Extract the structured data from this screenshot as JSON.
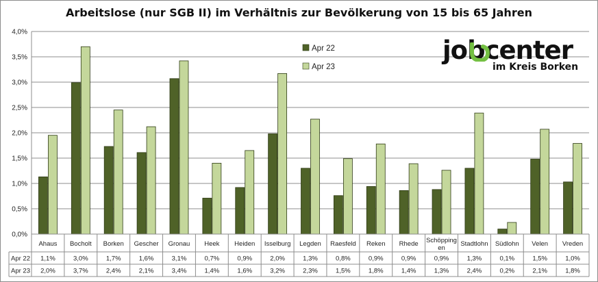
{
  "chart_data": {
    "type": "bar",
    "title": "Arbeitslose (nur SGB II) im Verhältnis zur Bevölkerung von 15 bis 65 Jahren",
    "categories": [
      "Ahaus",
      "Bocholt",
      "Borken",
      "Gescher",
      "Gronau",
      "Heek",
      "Heiden",
      "Isselburg",
      "Legden",
      "Raesfeld",
      "Reken",
      "Rhede",
      "Schöpping en",
      "Stadtlohn",
      "Südlohn",
      "Velen",
      "Vreden"
    ],
    "series": [
      {
        "name": "Apr 22",
        "color": "#4f6228",
        "values": [
          1.13,
          2.99,
          1.73,
          1.61,
          3.07,
          0.71,
          0.92,
          1.98,
          1.3,
          0.76,
          0.94,
          0.86,
          0.88,
          1.3,
          0.1,
          1.48,
          1.03
        ],
        "labels": [
          "1,1%",
          "3,0%",
          "1,7%",
          "1,6%",
          "3,1%",
          "0,7%",
          "0,9%",
          "2,0%",
          "1,3%",
          "0,8%",
          "0,9%",
          "0,9%",
          "0,9%",
          "1,3%",
          "0,1%",
          "1,5%",
          "1,0%"
        ]
      },
      {
        "name": "Apr 23",
        "color": "#c4d79b",
        "values": [
          1.95,
          3.7,
          2.45,
          2.12,
          3.42,
          1.4,
          1.65,
          3.17,
          2.27,
          1.49,
          1.78,
          1.39,
          1.26,
          2.39,
          0.23,
          2.07,
          1.79
        ],
        "labels": [
          "2,0%",
          "3,7%",
          "2,4%",
          "2,1%",
          "3,4%",
          "1,4%",
          "1,6%",
          "3,2%",
          "2,3%",
          "1,5%",
          "1,8%",
          "1,4%",
          "1,3%",
          "2,4%",
          "0,2%",
          "2,1%",
          "1,8%"
        ]
      }
    ],
    "ylim": [
      0,
      4.0
    ],
    "yticks": [
      "0,0%",
      "0,5%",
      "1,0%",
      "1,5%",
      "2,0%",
      "2,5%",
      "3,0%",
      "3,5%",
      "4,0%"
    ],
    "grid": true,
    "legend_position": "top-center",
    "data_table": true
  },
  "logo": {
    "word": "jobcenter",
    "sub": "im Kreis Borken",
    "accent_color": "#74c043"
  }
}
